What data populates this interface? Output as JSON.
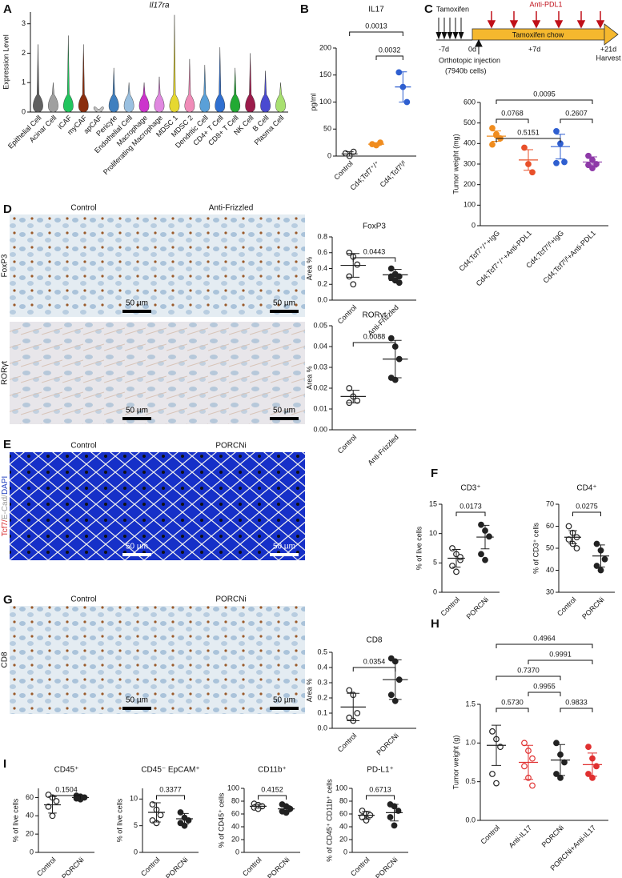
{
  "panels": [
    "A",
    "B",
    "C",
    "D",
    "E",
    "F",
    "G",
    "H",
    "I"
  ],
  "scale_bar": "50 µm",
  "micrographs": {
    "D": {
      "columns": [
        "Control",
        "Anti-Frizzled"
      ],
      "rows": [
        "FoxP3",
        "RORγt"
      ]
    },
    "E": {
      "columns": [
        "Control",
        "PORCNi"
      ],
      "channels": [
        {
          "label": "Tcf7/",
          "color": "#d62728"
        },
        {
          "label": "E-Cad/",
          "color": "#999999"
        },
        {
          "label": "DAPI",
          "color": "#1f3fbf"
        }
      ]
    },
    "G": {
      "columns": [
        "Control",
        "PORCNi"
      ],
      "rows": [
        "CD8"
      ]
    }
  },
  "timeline": {
    "start": "Tamoxifen",
    "treatment": "Anti-PDL1",
    "days": [
      "-7d",
      "0d",
      "+7d",
      "+21d"
    ],
    "chow": "Tamoxifen chow",
    "injection": "Orthotopic injection",
    "cells": "(7940b cells)",
    "end": "Harvest"
  },
  "chart_data": [
    {
      "type": "violin",
      "title": "Il17ra",
      "y_label": "Expression Level",
      "categories": [
        "Epithelial Cell",
        "Acinar Cell",
        "iCAF",
        "myCAF",
        "apCAF",
        "Pericyte",
        "Endothelial Cell",
        "Macrophage",
        "Proliferating Macrophage",
        "MDSC 1",
        "MDSC 2",
        "Dendritic Cell",
        "CD4+ T Cell",
        "CD8+ T Cell",
        "NK Cell",
        "B Cell",
        "Plasma Cell"
      ],
      "values": [
        2.3,
        1.0,
        2.6,
        2.3,
        0.1,
        1.5,
        1.0,
        1.0,
        1.2,
        3.3,
        1.8,
        1.6,
        2.2,
        1.5,
        2.0,
        1.4,
        1.0
      ],
      "colors": [
        "#606060",
        "#a0a0a0",
        "#22c55e",
        "#8b2e0e",
        "#c0c0c0",
        "#3f7fbf",
        "#9ac0e0",
        "#cc33cc",
        "#e088e0",
        "#e6d830",
        "#f08cb8",
        "#5aa0d8",
        "#2f6fd0",
        "#22aa33",
        "#9b1b4b",
        "#4a4ad0",
        "#a8e070"
      ],
      "ylim": [
        0,
        3.4
      ],
      "yticks": [
        0,
        1,
        2,
        3
      ]
    },
    {
      "type": "dot",
      "title": "IL17",
      "y_label": "pg/ml",
      "categories": [
        "Control",
        "Cd4;Tcf7⁺/⁺",
        "Cd4;Tcf7ᶠ/ᶠ"
      ],
      "colors": [
        "#222222",
        "#f08c1e",
        "#2f5fd0"
      ],
      "filled": [
        false,
        true,
        true
      ],
      "points": [
        [
          5,
          0,
          8
        ],
        [
          22,
          20,
          25
        ],
        [
          155,
          128,
          100
        ]
      ],
      "mean": [
        4,
        22,
        128
      ],
      "sd": [
        4,
        2.5,
        28
      ],
      "comparisons": [
        {
          "p": "0.0013",
          "between": [
            "Control",
            "Cd4;Tcf7ᶠ/ᶠ"
          ]
        },
        {
          "p": "0.0032",
          "between": [
            "Cd4;Tcf7⁺/⁺",
            "Cd4;Tcf7ᶠ/ᶠ"
          ]
        }
      ],
      "ylim": [
        0,
        200
      ],
      "yticks": [
        0,
        50,
        100,
        150,
        200
      ]
    },
    {
      "type": "dot",
      "y_label": "Tumor weight (mg)",
      "categories": [
        "Cd4;Tcf7⁺/⁺+IgG",
        "Cd4;Tcf7⁺/⁺+Anti-PDL1",
        "Cd4;Tcf7ᶠ/ᶠ+IgG",
        "Cd4;Tcf7ᶠ/ᶠ+Anti-PDL1"
      ],
      "colors": [
        "#f08c1e",
        "#e8502a",
        "#2f5fd0",
        "#8e3aa8"
      ],
      "filled": [
        true,
        true,
        true,
        true
      ],
      "points": [
        [
          475,
          440,
          425,
          395,
          445
        ],
        [
          380,
          300,
          260
        ],
        [
          460,
          400,
          310,
          305
        ],
        [
          340,
          320,
          300,
          295,
          280
        ]
      ],
      "mean": [
        436,
        320,
        385,
        310
      ],
      "sd": [
        25,
        50,
        60,
        25
      ],
      "comparisons": [
        {
          "p": "0.0095",
          "between": [
            "Cd4;Tcf7⁺/⁺+IgG",
            "Cd4;Tcf7ᶠ/ᶠ+Anti-PDL1"
          ]
        },
        {
          "p": "0.0768",
          "between": [
            "Cd4;Tcf7⁺/⁺+IgG",
            "Cd4;Tcf7⁺/⁺+Anti-PDL1"
          ]
        },
        {
          "p": "0.2607",
          "between": [
            "Cd4;Tcf7ᶠ/ᶠ+IgG",
            "Cd4;Tcf7ᶠ/ᶠ+Anti-PDL1"
          ]
        },
        {
          "p": "0.5151",
          "between": [
            "Cd4;Tcf7⁺/⁺+IgG",
            "Cd4;Tcf7ᶠ/ᶠ+IgG"
          ]
        }
      ],
      "ylim": [
        0,
        600
      ],
      "yticks": [
        0,
        100,
        200,
        300,
        400,
        500,
        600
      ]
    },
    {
      "type": "dot",
      "title": "FoxP3",
      "y_label": "Area %",
      "categories": [
        "Control",
        "Anti-Frizzled"
      ],
      "colors": [
        "#222222",
        "#222222"
      ],
      "filled": [
        false,
        true
      ],
      "points": [
        [
          0.6,
          0.55,
          0.45,
          0.3,
          0.2
        ],
        [
          0.4,
          0.33,
          0.3,
          0.28,
          0.25,
          0.22,
          0.3
        ]
      ],
      "mean": [
        0.44,
        0.32
      ],
      "sd": [
        0.15,
        0.07
      ],
      "comparisons": [
        {
          "p": "0.0443",
          "between": [
            "Control",
            "Anti-Frizzled"
          ]
        }
      ],
      "ylim": [
        0,
        0.8
      ],
      "yticks": [
        {
          "value": 0,
          "label": "0.0"
        },
        0.2,
        0.4,
        0.6,
        0.8
      ]
    },
    {
      "type": "dot",
      "title": "RORγt",
      "y_label": "Area %",
      "categories": [
        "Control",
        "Anti-Frizzled"
      ],
      "colors": [
        "#222222",
        "#222222"
      ],
      "filled": [
        false,
        true
      ],
      "points": [
        [
          0.02,
          0.016,
          0.014,
          0.013
        ],
        [
          0.044,
          0.04,
          0.034,
          0.025,
          0.024
        ]
      ],
      "mean": [
        0.016,
        0.034
      ],
      "sd": [
        0.003,
        0.009
      ],
      "comparisons": [
        {
          "p": "0.0088",
          "between": [
            "Control",
            "Anti-Frizzled"
          ]
        }
      ],
      "ylim": [
        0,
        0.05
      ],
      "yticks": [
        {
          "value": 0,
          "label": "0.00"
        },
        0.01,
        0.02,
        0.03,
        0.04,
        0.05
      ]
    },
    {
      "type": "dot",
      "title": "CD3⁺",
      "y_label": "% of live cells",
      "categories": [
        "Control",
        "PORCNi"
      ],
      "colors": [
        "#222222",
        "#222222"
      ],
      "filled": [
        false,
        true
      ],
      "points": [
        [
          7.5,
          6.5,
          5.5,
          4.5,
          3.5,
          6.0
        ],
        [
          11.5,
          10.5,
          9.5,
          6.5,
          5.5
        ]
      ],
      "mean": [
        5.8,
        9.4
      ],
      "sd": [
        1.5,
        2
      ],
      "comparisons": [
        {
          "p": "0.0173",
          "between": [
            "Control",
            "PORCNi"
          ]
        }
      ],
      "ylim": [
        0,
        15
      ],
      "yticks": [
        0,
        5,
        10,
        15
      ]
    },
    {
      "type": "dot",
      "title": "CD4⁺",
      "y_label": "% of CD3⁺ cells",
      "categories": [
        "Control",
        "PORCNi"
      ],
      "colors": [
        "#222222",
        "#222222"
      ],
      "filled": [
        false,
        true
      ],
      "points": [
        [
          60,
          57,
          55,
          54,
          52,
          50
        ],
        [
          52,
          49,
          45,
          42,
          40
        ]
      ],
      "mean": [
        55,
        46.5
      ],
      "sd": [
        3,
        5
      ],
      "comparisons": [
        {
          "p": "0.0275",
          "between": [
            "Control",
            "PORCNi"
          ]
        }
      ],
      "ylim": [
        30,
        70
      ],
      "yticks": [
        30,
        40,
        50,
        60,
        70
      ]
    },
    {
      "type": "dot",
      "title": "CD8",
      "y_label": "Area %",
      "categories": [
        "Control",
        "PORCNi"
      ],
      "colors": [
        "#222222",
        "#222222"
      ],
      "filled": [
        false,
        true
      ],
      "points": [
        [
          0.25,
          0.22,
          0.1,
          0.07,
          0.05
        ],
        [
          0.46,
          0.44,
          0.32,
          0.22,
          0.18
        ]
      ],
      "mean": [
        0.14,
        0.32
      ],
      "sd": [
        0.09,
        0.13
      ],
      "comparisons": [
        {
          "p": "0.0354",
          "between": [
            "Control",
            "PORCNi"
          ]
        }
      ],
      "ylim": [
        0,
        0.5
      ],
      "yticks": [
        {
          "value": 0,
          "label": "0.0"
        },
        0.1,
        0.2,
        0.3,
        0.4,
        0.5
      ]
    },
    {
      "type": "dot",
      "y_label": "Tumor weight (g)",
      "categories": [
        "Control",
        "Anti-IL17",
        "PORCNi",
        "PORCNi+Anti-IL17"
      ],
      "colors": [
        "#222222",
        "#e03030",
        "#222222",
        "#e03030"
      ],
      "filled": [
        false,
        false,
        true,
        true
      ],
      "points": [
        [
          1.15,
          1.05,
          0.95,
          0.6,
          0.48
        ],
        [
          1.0,
          0.9,
          0.8,
          0.7,
          0.55,
          0.45
        ],
        [
          1.0,
          0.85,
          0.75,
          0.6,
          0.55
        ],
        [
          0.95,
          0.8,
          0.7,
          0.6,
          0.55
        ]
      ],
      "mean": [
        0.97,
        0.75,
        0.78,
        0.72
      ],
      "sd": [
        0.26,
        0.22,
        0.2,
        0.15
      ],
      "comparisons": [
        {
          "p": "0.4964",
          "between": [
            "Control",
            "PORCNi+Anti-IL17"
          ]
        },
        {
          "p": "0.9991",
          "between": [
            "Anti-IL17",
            "PORCNi+Anti-IL17"
          ]
        },
        {
          "p": "0.7370",
          "between": [
            "Control",
            "PORCNi"
          ]
        },
        {
          "p": "0.9955",
          "between": [
            "Anti-IL17",
            "PORCNi"
          ]
        },
        {
          "p": "0.5730",
          "between": [
            "Control",
            "Anti-IL17"
          ]
        },
        {
          "p": "0.9833",
          "between": [
            "PORCNi",
            "PORCNi+Anti-IL17"
          ]
        }
      ],
      "ylim": [
        0,
        1.5
      ],
      "yticks": [
        {
          "value": 0,
          "label": "0.0"
        },
        0.5,
        {
          "value": 1,
          "label": "1.0"
        },
        1.5
      ]
    },
    {
      "type": "dot",
      "title": "CD45⁺",
      "y_label": "% of live cells",
      "categories": [
        "Control",
        "PORCNi"
      ],
      "colors": [
        "#222222",
        "#222222"
      ],
      "filled": [
        false,
        true
      ],
      "points": [
        [
          63,
          60,
          56,
          50,
          40
        ],
        [
          62,
          61,
          60,
          59,
          58
        ]
      ],
      "mean": [
        52,
        60
      ],
      "sd": [
        9,
        1.5
      ],
      "comparisons": [
        {
          "p": "0.1504",
          "between": [
            "Control",
            "PORCNi"
          ]
        }
      ],
      "ylim": [
        0,
        70
      ],
      "yticks": [
        0,
        20,
        40,
        60
      ]
    },
    {
      "type": "dot",
      "title": "CD45⁻ EpCAM⁺",
      "y_label": "% of live cells",
      "categories": [
        "Control",
        "PORCNi"
      ],
      "colors": [
        "#222222",
        "#222222"
      ],
      "filled": [
        false,
        true
      ],
      "points": [
        [
          9,
          8,
          7,
          6,
          5.5
        ],
        [
          7.5,
          6.5,
          6,
          5.5,
          5
        ]
      ],
      "mean": [
        7.5,
        6.3
      ],
      "sd": [
        1.8,
        1
      ],
      "comparisons": [
        {
          "p": "0.3377",
          "between": [
            "Control",
            "PORCNi"
          ]
        }
      ],
      "ylim": [
        0,
        12
      ],
      "yticks": [
        0,
        5,
        10
      ]
    },
    {
      "type": "dot",
      "title": "CD11b⁺",
      "y_label": "% of CD45⁺ cells",
      "categories": [
        "Control",
        "PORCNi"
      ],
      "colors": [
        "#222222",
        "#222222"
      ],
      "filled": [
        false,
        true
      ],
      "points": [
        [
          76,
          74,
          72,
          70,
          68
        ],
        [
          75,
          72,
          68,
          64,
          62
        ]
      ],
      "mean": [
        72,
        68
      ],
      "sd": [
        3,
        5
      ],
      "comparisons": [
        {
          "p": "0.4152",
          "between": [
            "Control",
            "PORCNi"
          ]
        }
      ],
      "ylim": [
        0,
        100
      ],
      "yticks": [
        0,
        20,
        40,
        60,
        80,
        100
      ]
    },
    {
      "type": "dot",
      "title": "PD-L1⁺",
      "y_label": "% of CD45⁺ CD11b⁺ cells",
      "categories": [
        "Control",
        "PORCNi"
      ],
      "colors": [
        "#222222",
        "#222222"
      ],
      "filled": [
        false,
        true
      ],
      "points": [
        [
          65,
          60,
          58,
          55,
          50
        ],
        [
          75,
          72,
          65,
          55,
          42
        ]
      ],
      "mean": [
        58,
        62
      ],
      "sd": [
        6,
        13
      ],
      "comparisons": [
        {
          "p": "0.6713",
          "between": [
            "Control",
            "PORCNi"
          ]
        }
      ],
      "ylim": [
        0,
        100
      ],
      "yticks": [
        0,
        20,
        40,
        60,
        80,
        100
      ]
    }
  ]
}
